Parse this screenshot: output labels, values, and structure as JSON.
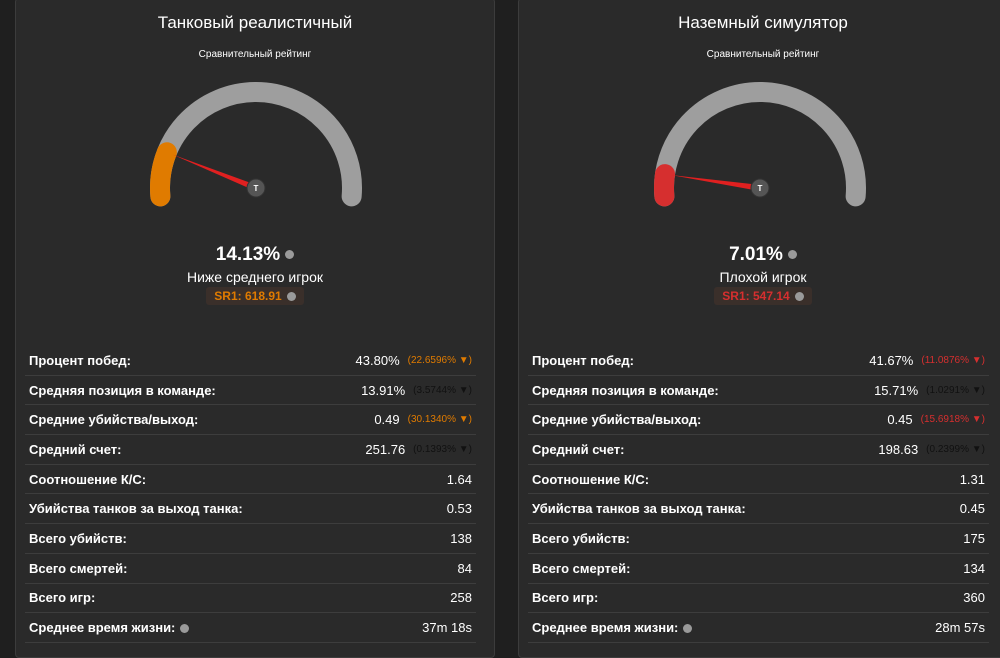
{
  "panels": [
    {
      "title": "Танковый реалистичный",
      "subtitle": "Сравнительный рейтинг",
      "color": "#e07b00",
      "needle_label": "T",
      "rating": {
        "value": 14.13,
        "label": "14.13%"
      },
      "verdict": "Ниже среднего игрок",
      "sr": "SR1: 618.91",
      "rows": [
        {
          "label": "Процент побед:",
          "value": "43.80%",
          "change": "(22.6596% ▼)",
          "change_color": "#e07b00"
        },
        {
          "label": "Средняя позиция в команде:",
          "value": "13.91%",
          "change": "(3.5744% ▼)",
          "change_color": "#111111"
        },
        {
          "label": "Средние убийства/выход:",
          "value": "0.49",
          "change": "(30.1340% ▼)",
          "change_color": "#e07b00"
        },
        {
          "label": "Средний счет:",
          "value": "251.76",
          "change": "(0.1393% ▼)",
          "change_color": "#111111"
        },
        {
          "label": "Соотношение К/С:",
          "value": "1.64"
        },
        {
          "label": "Убийства танков за выход танка:",
          "value": "0.53"
        },
        {
          "label": "Всего убийств:",
          "value": "138"
        },
        {
          "label": "Всего смертей:",
          "value": "84"
        },
        {
          "label": "Всего игр:",
          "value": "258"
        },
        {
          "label": "Среднее время жизни:",
          "value": "37m 18s",
          "info": true
        }
      ]
    },
    {
      "title": "Наземный симулятор",
      "subtitle": "Сравнительный рейтинг",
      "color": "#d62f2f",
      "needle_label": "T",
      "rating": {
        "value": 7.01,
        "label": "7.01%"
      },
      "verdict": "Плохой игрок",
      "sr": "SR1: 547.14",
      "rows": [
        {
          "label": "Процент побед:",
          "value": "41.67%",
          "change": "(11.0876% ▼)",
          "change_color": "#d62f2f"
        },
        {
          "label": "Средняя позиция в команде:",
          "value": "15.71%",
          "change": "(1.0291% ▼)",
          "change_color": "#111111"
        },
        {
          "label": "Средние убийства/выход:",
          "value": "0.45",
          "change": "(15.6918% ▼)",
          "change_color": "#d62f2f"
        },
        {
          "label": "Средний счет:",
          "value": "198.63",
          "change": "(0.2399% ▼)",
          "change_color": "#111111"
        },
        {
          "label": "Соотношение К/С:",
          "value": "1.31"
        },
        {
          "label": "Убийства танков за выход танка:",
          "value": "0.45"
        },
        {
          "label": "Всего убийств:",
          "value": "175"
        },
        {
          "label": "Всего смертей:",
          "value": "134"
        },
        {
          "label": "Всего игр:",
          "value": "360"
        },
        {
          "label": "Среднее время жизни:",
          "value": "28m 57s",
          "info": true
        }
      ]
    }
  ]
}
